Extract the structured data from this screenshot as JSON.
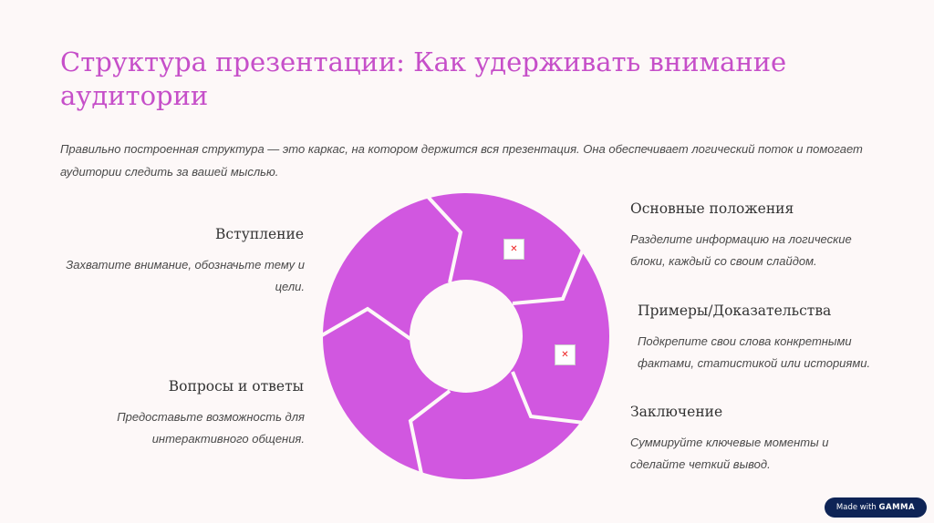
{
  "title": "Структура презентации: Как удерживать внимание аудитории",
  "intro": "Правильно построенная структура — это каркас, на котором держится вся презентация. Она обеспечивает логический поток и помогает аудитории следить за вашей мыслью.",
  "sections": [
    {
      "heading": "Вступление",
      "text": "Захватите внимание, обозначьте тему и цели."
    },
    {
      "heading": "Основные положения",
      "text": "Разделите информацию на логические блоки, каждый со своим слайдом."
    },
    {
      "heading": "Примеры/Доказательства",
      "text": "Подкрепите свои слова конкретными фактами, статистикой или историями."
    },
    {
      "heading": "Заключение",
      "text": "Суммируйте ключевые моменты и сделайте четкий вывод."
    },
    {
      "heading": "Вопросы и ответы",
      "text": "Предоставьте возможность для интерактивного общения."
    }
  ],
  "colors": {
    "accent": "#c64fc9",
    "ring": "#d157e0",
    "badge": "#0e2456"
  },
  "icons": [
    "broken-image-icon",
    "broken-image-icon"
  ],
  "badge": {
    "prefix": "Made with",
    "brand": "GAMMA"
  }
}
